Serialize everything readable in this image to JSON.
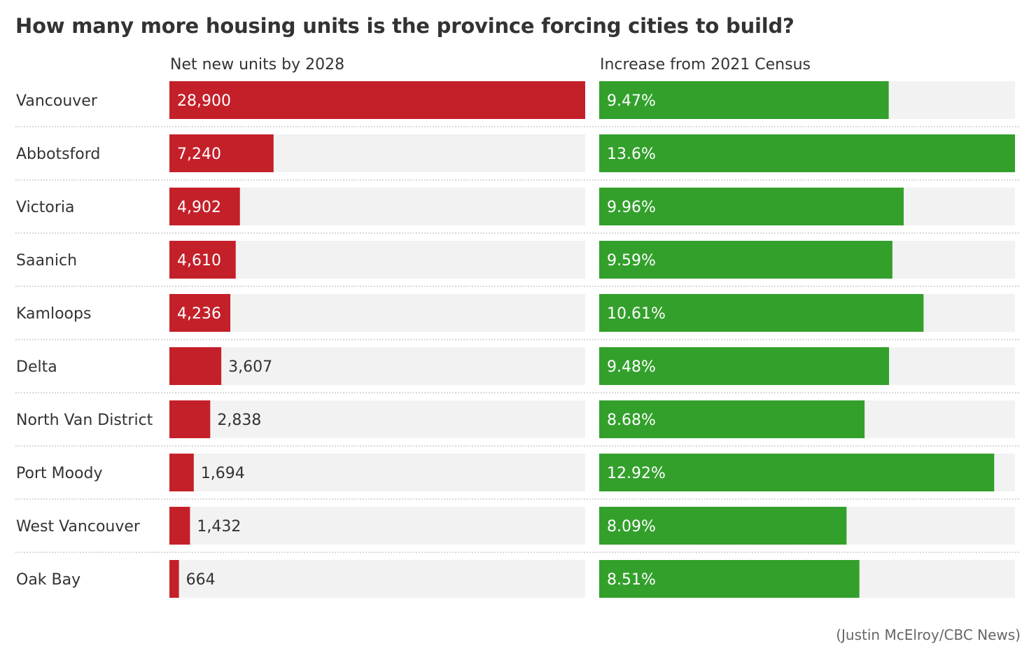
{
  "title": "How many more housing units is the province forcing cities to build?",
  "source": "(Justin McElroy/CBC News)",
  "colors": {
    "units": "#c4202a",
    "percent": "#33a02c",
    "track": "#f2f2f2",
    "divider": "#cccccc",
    "text": "#333333",
    "label_inside": "#ffffff"
  },
  "chart_data": {
    "type": "bar",
    "orientation": "horizontal",
    "title": "How many more housing units is the province forcing cities to build?",
    "categories": [
      "Vancouver",
      "Abbotsford",
      "Victoria",
      "Saanich",
      "Kamloops",
      "Delta",
      "North Van District",
      "Port Moody",
      "West Vancouver",
      "Oak Bay"
    ],
    "series": [
      {
        "name": "Net new units by 2028",
        "values": [
          28900,
          7240,
          4902,
          4610,
          4236,
          3607,
          2838,
          1694,
          1432,
          664
        ],
        "labels": [
          "28,900",
          "7,240",
          "4,902",
          "4,610",
          "4,236",
          "3,607",
          "2,838",
          "1,694",
          "1,432",
          "664"
        ],
        "max": 28900
      },
      {
        "name": "Increase from 2021 Census",
        "values": [
          9.47,
          13.6,
          9.96,
          9.59,
          10.61,
          9.48,
          8.68,
          12.92,
          8.09,
          8.51
        ],
        "labels": [
          "9.47%",
          "13.6%",
          "9.96%",
          "9.59%",
          "10.61%",
          "9.48%",
          "8.68%",
          "12.92%",
          "8.09%",
          "8.51%"
        ],
        "max": 13.6
      }
    ]
  }
}
